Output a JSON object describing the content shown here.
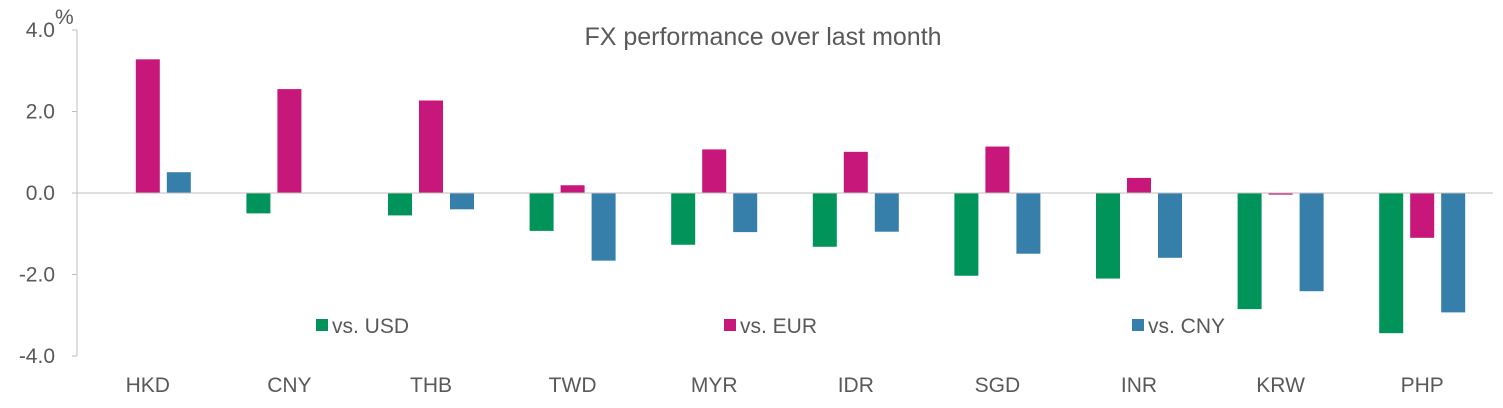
{
  "chart_data": {
    "type": "bar",
    "title": "FX performance over last month",
    "unit": "%",
    "categories": [
      "HKD",
      "CNY",
      "THB",
      "TWD",
      "MYR",
      "IDR",
      "SGD",
      "INR",
      "KRW",
      "PHP"
    ],
    "series": [
      {
        "name": "vs. USD",
        "color": "#00935A",
        "values": [
          0.0,
          -0.5,
          -0.55,
          -0.93,
          -1.27,
          -1.32,
          -2.03,
          -2.1,
          -2.85,
          -3.44
        ]
      },
      {
        "name": "vs. EUR",
        "color": "#C8177A",
        "values": [
          3.28,
          2.55,
          2.27,
          0.19,
          1.07,
          1.01,
          1.14,
          0.37,
          -0.04,
          -1.1
        ]
      },
      {
        "name": "vs. CNY",
        "color": "#357FAA",
        "values": [
          0.51,
          0.0,
          -0.4,
          -1.66,
          -0.96,
          -0.95,
          -1.49,
          -1.59,
          -2.41,
          -2.93
        ]
      }
    ],
    "yticks": [
      "4.0",
      "2.0",
      "0.0",
      "-2.0",
      "-4.0"
    ],
    "ylim": [
      -4,
      4
    ],
    "grid": false,
    "legend_position": "bottom-inside"
  }
}
